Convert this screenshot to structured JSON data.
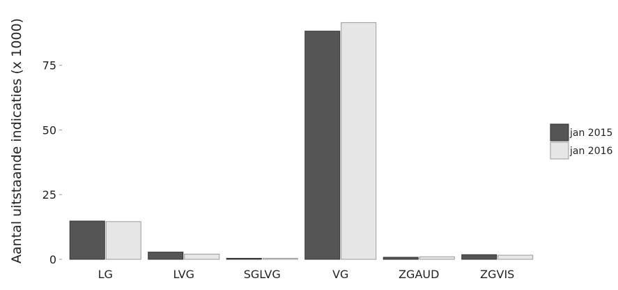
{
  "chart_data": {
    "type": "bar",
    "title": "",
    "xlabel": "",
    "ylabel": "Aantal uitstaande indicaties (x 1000)",
    "categories": [
      "LG",
      "LVG",
      "SGLVG",
      "VG",
      "ZGAUD",
      "ZGVIS"
    ],
    "series": [
      {
        "name": "jan 2015",
        "color": "#555555",
        "values": [
          14.8,
          2.8,
          0.3,
          88.2,
          0.8,
          1.8
        ]
      },
      {
        "name": "jan 2016",
        "color": "#e6e6e6",
        "values": [
          14.6,
          2.0,
          0.3,
          91.5,
          1.0,
          1.6
        ]
      }
    ],
    "ylim": [
      0,
      97
    ],
    "yticks": [
      0,
      25,
      50,
      75
    ],
    "ytick_labels": [
      "0",
      "25",
      "50",
      "75"
    ],
    "grid": false,
    "legend": "right"
  }
}
